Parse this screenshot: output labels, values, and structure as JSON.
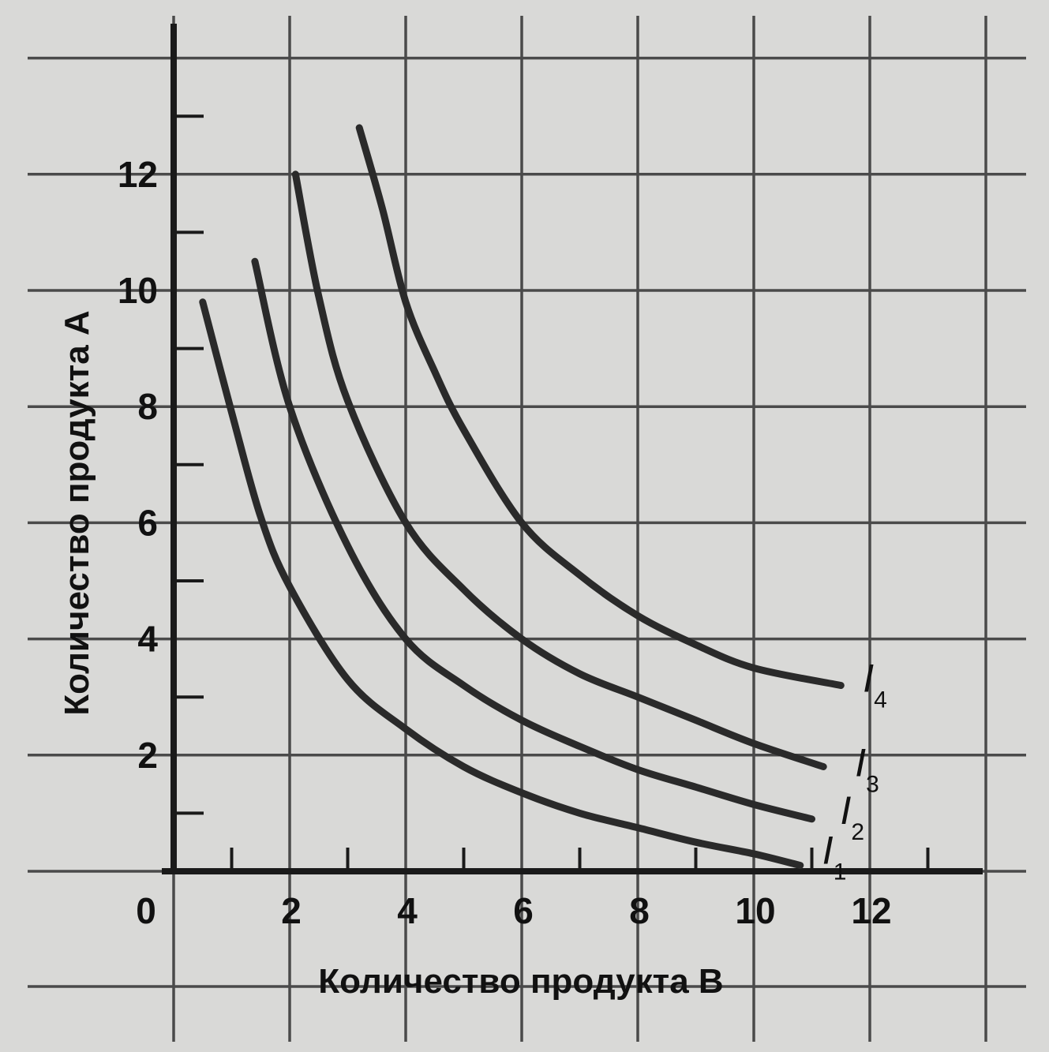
{
  "chart_data": {
    "type": "line",
    "title": "",
    "xlabel": "Количество продукта B",
    "ylabel": "Количество продукта A",
    "xlim": [
      0,
      14
    ],
    "ylim": [
      0,
      14
    ],
    "origin_label": "0",
    "x_ticks": [
      2,
      4,
      6,
      8,
      10,
      12
    ],
    "y_ticks": [
      2,
      4,
      6,
      8,
      10,
      12
    ],
    "grid": true,
    "legend": "none",
    "line_color": "#2a2a2a",
    "background": "#d9d9d7",
    "series": [
      {
        "name": "I1",
        "label_letter": "I",
        "label_sub": "1",
        "points": [
          [
            0.5,
            9.8
          ],
          [
            1.0,
            7.9
          ],
          [
            1.5,
            6.1
          ],
          [
            2.0,
            4.9
          ],
          [
            3.0,
            3.3
          ],
          [
            4.0,
            2.45
          ],
          [
            5.0,
            1.8
          ],
          [
            6.0,
            1.35
          ],
          [
            7.0,
            1.0
          ],
          [
            8.0,
            0.75
          ],
          [
            9.0,
            0.5
          ],
          [
            10.0,
            0.3
          ],
          [
            10.8,
            0.1
          ]
        ]
      },
      {
        "name": "I2",
        "label_letter": "I",
        "label_sub": "2",
        "points": [
          [
            1.4,
            10.5
          ],
          [
            2.0,
            8.0
          ],
          [
            3.0,
            5.6
          ],
          [
            4.0,
            4.0
          ],
          [
            5.0,
            3.2
          ],
          [
            6.0,
            2.6
          ],
          [
            7.0,
            2.15
          ],
          [
            8.0,
            1.75
          ],
          [
            9.0,
            1.45
          ],
          [
            10.0,
            1.15
          ],
          [
            11.0,
            0.9
          ]
        ]
      },
      {
        "name": "I3",
        "label_letter": "I",
        "label_sub": "3",
        "points": [
          [
            2.1,
            12.0
          ],
          [
            2.5,
            9.9
          ],
          [
            3.0,
            8.1
          ],
          [
            4.0,
            6.0
          ],
          [
            5.0,
            4.85
          ],
          [
            6.0,
            4.0
          ],
          [
            7.0,
            3.4
          ],
          [
            8.0,
            3.0
          ],
          [
            9.0,
            2.6
          ],
          [
            10.0,
            2.2
          ],
          [
            11.2,
            1.8
          ]
        ]
      },
      {
        "name": "I4",
        "label_letter": "I",
        "label_sub": "4",
        "points": [
          [
            3.2,
            12.8
          ],
          [
            3.6,
            11.4
          ],
          [
            4.0,
            9.8
          ],
          [
            4.5,
            8.6
          ],
          [
            5.0,
            7.6
          ],
          [
            6.0,
            6.0
          ],
          [
            7.0,
            5.1
          ],
          [
            8.0,
            4.4
          ],
          [
            9.0,
            3.9
          ],
          [
            10.0,
            3.5
          ],
          [
            11.5,
            3.2
          ]
        ]
      }
    ]
  }
}
